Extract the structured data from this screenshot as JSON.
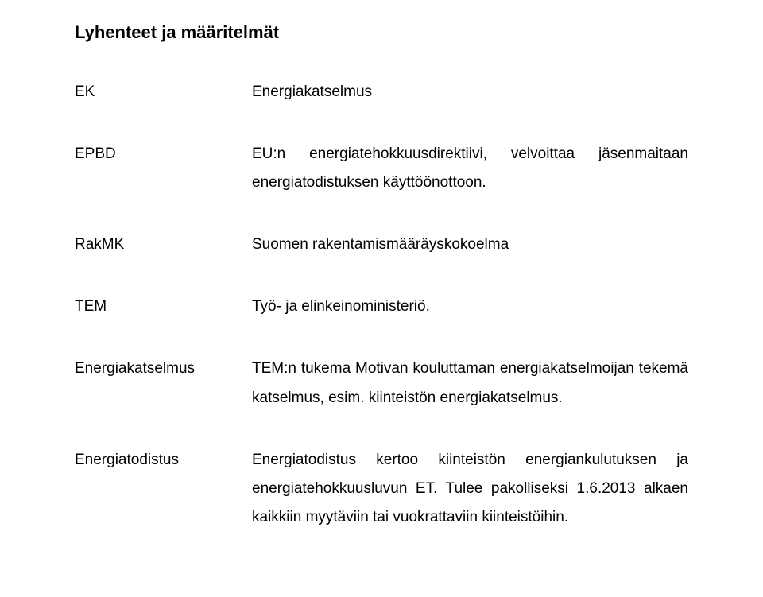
{
  "title": "Lyhenteet ja määritelmät",
  "entries": [
    {
      "term": "EK",
      "definition": "Energiakatselmus",
      "justify": false
    },
    {
      "term": "EPBD",
      "definition": "EU:n energiatehokkuusdirektiivi, velvoittaa jäsenmaitaan energiatodistuksen käyttöönottoon.",
      "justify": true
    },
    {
      "term": "RakMK",
      "definition": "Suomen rakentamismääräyskokoelma",
      "justify": false
    },
    {
      "term": "TEM",
      "definition": "Työ-  ja elinkeinoministeriö.",
      "justify": false
    },
    {
      "term": "Energiakatselmus",
      "definition": "TEM:n tukema Motivan kouluttaman energiakatselmoijan tekemä katselmus, esim. kiinteistön energiakatselmus.",
      "justify": true
    },
    {
      "term": "Energiatodistus",
      "definition": "Energiatodistus kertoo kiinteistön energiankulutuksen ja energiatehokkuusluvun ET. Tulee pakolliseksi 1.6.2013 alkaen kaikkiin myytäviin tai vuokrattaviin kiinteistöihin.",
      "justify": true
    }
  ]
}
